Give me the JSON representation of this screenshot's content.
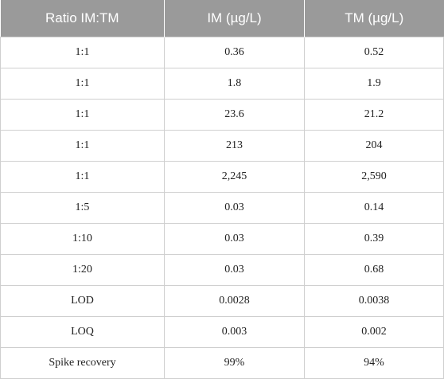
{
  "table": {
    "headers": [
      "Ratio IM:TM",
      "IM (µg/L)",
      "TM (µg/L)"
    ],
    "rows": [
      [
        "1:1",
        "0.36",
        "0.52"
      ],
      [
        "1:1",
        "1.8",
        "1.9"
      ],
      [
        "1:1",
        "23.6",
        "21.2"
      ],
      [
        "1:1",
        "213",
        "204"
      ],
      [
        "1:1",
        "2,245",
        "2,590"
      ],
      [
        "1:5",
        "0.03",
        "0.14"
      ],
      [
        "1:10",
        "0.03",
        "0.39"
      ],
      [
        "1:20",
        "0.03",
        "0.68"
      ],
      [
        "LOD",
        "0.0028",
        "0.0038"
      ],
      [
        "LOQ",
        "0.003",
        "0.002"
      ],
      [
        "Spike recovery",
        "99%",
        "94%"
      ]
    ]
  },
  "colors": {
    "header_background": "#9a9a9a",
    "header_text": "#ffffff",
    "grid_line": "#cfcfcf"
  }
}
